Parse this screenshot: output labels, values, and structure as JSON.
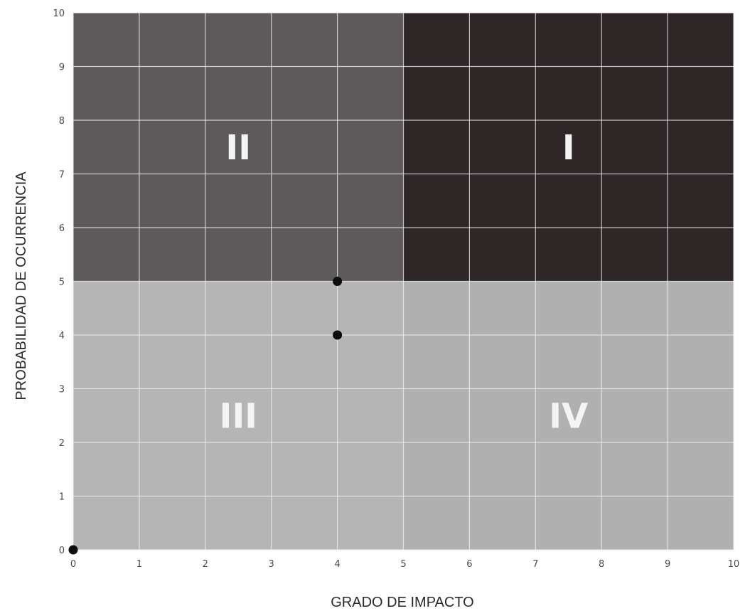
{
  "chart_data": {
    "type": "scatter",
    "xlabel": "GRADO DE IMPACTO",
    "ylabel": "PROBABILIDAD DE OCURRENCIA",
    "xlim": [
      0,
      10
    ],
    "ylim": [
      0,
      10
    ],
    "x_ticks": [
      "0",
      "1",
      "2",
      "3",
      "4",
      "5",
      "6",
      "7",
      "8",
      "9",
      "10"
    ],
    "y_ticks": [
      "0",
      "1",
      "2",
      "3",
      "4",
      "5",
      "6",
      "7",
      "8",
      "9",
      "10"
    ],
    "grid": true,
    "quadrants": [
      {
        "label": "II",
        "x_range": [
          0,
          5
        ],
        "y_range": [
          5,
          10
        ],
        "color": "#5e5a5c"
      },
      {
        "label": "I",
        "x_range": [
          5,
          10
        ],
        "y_range": [
          5,
          10
        ],
        "color": "#2f2628"
      },
      {
        "label": "III",
        "x_range": [
          0,
          5
        ],
        "y_range": [
          0,
          5
        ],
        "color": "#b6b5b6"
      },
      {
        "label": "IV",
        "x_range": [
          5,
          10
        ],
        "y_range": [
          0,
          5
        ],
        "color": "#b1b0b1"
      }
    ],
    "points": [
      {
        "x": 4,
        "y": 5
      },
      {
        "x": 4,
        "y": 4
      },
      {
        "x": 0,
        "y": 0
      }
    ]
  }
}
